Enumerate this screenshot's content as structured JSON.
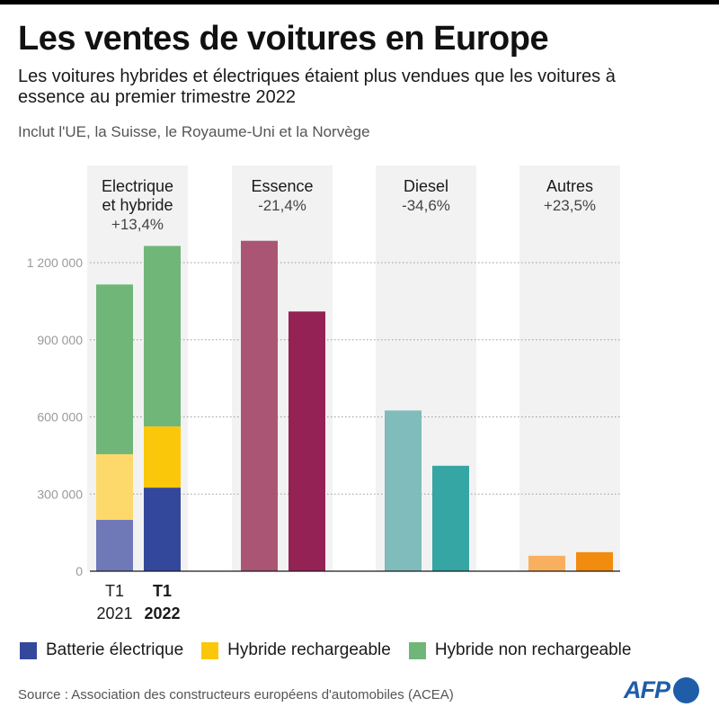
{
  "header": {
    "title": "Les ventes de voitures en Europe",
    "subtitle": "Les voitures hybrides et électriques étaient plus vendues que les voitures à essence au premier trimestre 2022",
    "note": "Inclut l'UE, la Suisse, le Royaume-Uni et la Norvège"
  },
  "legend": [
    {
      "label": "Batterie électrique",
      "color": "#34489b"
    },
    {
      "label": "Hybride rechargeable",
      "color": "#fbc70b"
    },
    {
      "label": "Hybride non rechargeable",
      "color": "#71b679"
    }
  ],
  "source": "Source : Association des constructeurs européens d'automobiles (ACEA)",
  "logo": "AFP",
  "chart_data": {
    "type": "bar",
    "ylim": [
      0,
      1300000
    ],
    "yticks": [
      0,
      300000,
      600000,
      900000,
      1200000
    ],
    "ytick_labels": [
      "0",
      "300 000",
      "600 000",
      "900 000",
      "1 200 000"
    ],
    "x_labels": [
      {
        "line1": "T1",
        "line2": "2021",
        "bold": false
      },
      {
        "line1": "T1",
        "line2": "2022",
        "bold": true
      }
    ],
    "groups": [
      {
        "name_lines": [
          "Electrique",
          "et hybride"
        ],
        "change": "+13,4%",
        "stacked": true,
        "bars": [
          {
            "period": "T1 2021",
            "segments": [
              {
                "series": "Batterie électrique",
                "value": 200000,
                "color": "#6f79b8"
              },
              {
                "series": "Hybride rechargeable",
                "value": 255000,
                "color": "#fcd96a"
              },
              {
                "series": "Hybride non rechargeable",
                "value": 660000,
                "color": "#71b679"
              }
            ]
          },
          {
            "period": "T1 2022",
            "segments": [
              {
                "series": "Batterie électrique",
                "value": 325000,
                "color": "#34489b"
              },
              {
                "series": "Hybride rechargeable",
                "value": 238000,
                "color": "#fbc70b"
              },
              {
                "series": "Hybride non rechargeable",
                "value": 702000,
                "color": "#71b679"
              }
            ]
          }
        ]
      },
      {
        "name_lines": [
          "Essence"
        ],
        "change": "-21,4%",
        "stacked": false,
        "bars": [
          {
            "period": "T1 2021",
            "value": 1285000,
            "color": "#a95573"
          },
          {
            "period": "T1 2022",
            "value": 1010000,
            "color": "#952254"
          }
        ]
      },
      {
        "name_lines": [
          "Diesel"
        ],
        "change": "-34,6%",
        "stacked": false,
        "bars": [
          {
            "period": "T1 2021",
            "value": 625000,
            "color": "#7fbcbb"
          },
          {
            "period": "T1 2022",
            "value": 410000,
            "color": "#36a6a4"
          }
        ]
      },
      {
        "name_lines": [
          "Autres"
        ],
        "change": "+23,5%",
        "stacked": false,
        "bars": [
          {
            "period": "T1 2021",
            "value": 60000,
            "color": "#f9b05e"
          },
          {
            "period": "T1 2022",
            "value": 74000,
            "color": "#f28c0f"
          }
        ]
      }
    ]
  }
}
